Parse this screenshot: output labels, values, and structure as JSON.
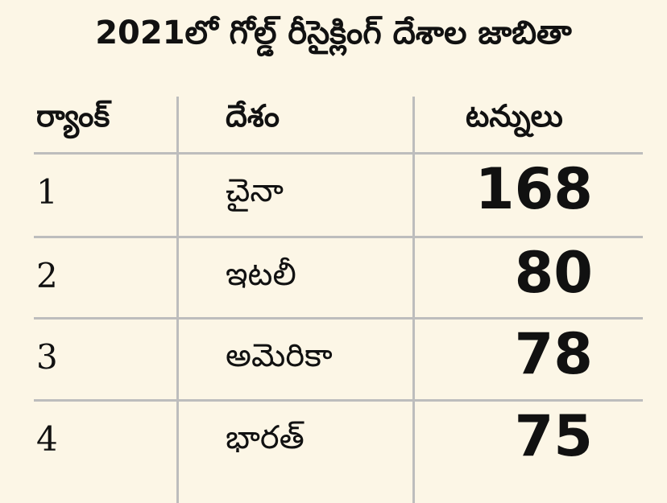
{
  "header": {
    "title": "2021లో గోల్డ్ రీసైక్లింగ్ దేశాల జాబితా"
  },
  "table": {
    "columns": [
      "ర్యాంక్",
      "దేశం",
      "టన్నులు"
    ],
    "rows": [
      [
        "1",
        "చైనా",
        "168"
      ],
      [
        "2",
        "ఇటలీ",
        "80"
      ],
      [
        "3",
        "అమెరికా",
        "78"
      ],
      [
        "4",
        "భారత్",
        "75"
      ]
    ]
  }
}
